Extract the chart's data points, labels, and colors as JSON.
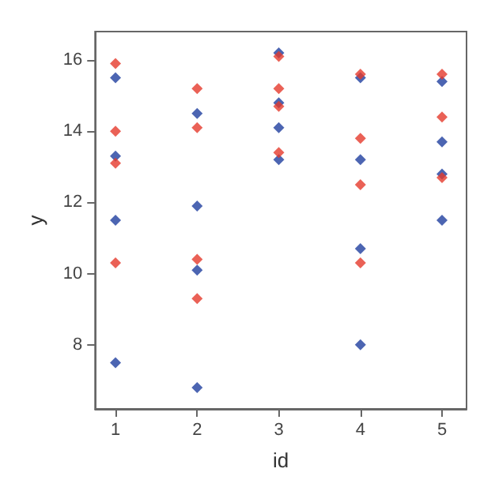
{
  "chart_data": {
    "type": "scatter",
    "xlabel": "id",
    "ylabel": "y",
    "marker": "diamond",
    "grid": false,
    "legend": false,
    "xlim": [
      0.75,
      5.3
    ],
    "xticks": [
      1,
      2,
      3,
      4,
      5
    ],
    "ylim": [
      6.2,
      16.8
    ],
    "yticks": [
      8,
      10,
      12,
      14,
      16
    ],
    "series": [
      {
        "color": "#e53a2c",
        "x": [
          1,
          1,
          1,
          1,
          2,
          2,
          2,
          2,
          3,
          3,
          3,
          3,
          4,
          4,
          4,
          4,
          5,
          5,
          5
        ],
        "values": [
          15.9,
          14.0,
          13.1,
          10.3,
          15.2,
          14.1,
          10.4,
          9.3,
          16.1,
          15.2,
          14.7,
          13.4,
          15.6,
          13.8,
          12.5,
          10.3,
          15.6,
          14.4,
          12.7
        ]
      },
      {
        "color": "#1f3f9f",
        "x": [
          1,
          1,
          1,
          1,
          2,
          2,
          2,
          2,
          3,
          3,
          3,
          3,
          4,
          4,
          4,
          4,
          5,
          5,
          5,
          5
        ],
        "values": [
          15.5,
          13.3,
          11.5,
          7.5,
          14.5,
          11.9,
          10.1,
          6.8,
          16.2,
          14.8,
          14.1,
          13.2,
          15.5,
          13.2,
          10.7,
          8.0,
          15.4,
          13.7,
          12.8,
          11.5
        ]
      }
    ]
  }
}
